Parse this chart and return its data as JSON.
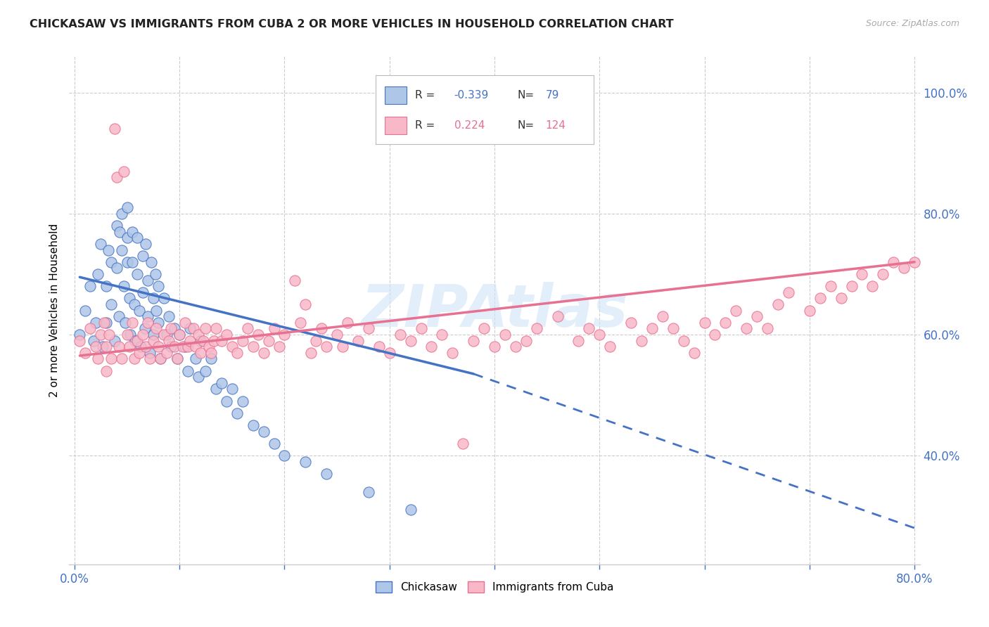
{
  "title": "CHICKASAW VS IMMIGRANTS FROM CUBA 2 OR MORE VEHICLES IN HOUSEHOLD CORRELATION CHART",
  "source": "Source: ZipAtlas.com",
  "ylabel": "2 or more Vehicles in Household",
  "legend_label1": "Chickasaw",
  "legend_label2": "Immigrants from Cuba",
  "R1": "-0.339",
  "N1": "79",
  "R2": "0.224",
  "N2": "124",
  "color1": "#aec6e8",
  "color2": "#f9b8c8",
  "trendline1_color": "#4472c4",
  "trendline2_color": "#e87090",
  "xlim": [
    -0.005,
    0.805
  ],
  "ylim": [
    0.22,
    1.06
  ],
  "x_ticks": [
    0.0,
    0.1,
    0.2,
    0.3,
    0.4,
    0.5,
    0.6,
    0.7,
    0.8
  ],
  "y_ticks_right": [
    0.4,
    0.6,
    0.8,
    1.0
  ],
  "chickasaw_x": [
    0.005,
    0.01,
    0.015,
    0.018,
    0.02,
    0.022,
    0.025,
    0.027,
    0.03,
    0.03,
    0.032,
    0.035,
    0.035,
    0.038,
    0.04,
    0.04,
    0.042,
    0.043,
    0.045,
    0.045,
    0.047,
    0.048,
    0.05,
    0.05,
    0.05,
    0.052,
    0.053,
    0.055,
    0.055,
    0.057,
    0.058,
    0.06,
    0.06,
    0.062,
    0.063,
    0.065,
    0.065,
    0.067,
    0.068,
    0.07,
    0.07,
    0.072,
    0.073,
    0.075,
    0.075,
    0.077,
    0.078,
    0.08,
    0.08,
    0.082,
    0.085,
    0.088,
    0.09,
    0.092,
    0.095,
    0.098,
    0.1,
    0.105,
    0.108,
    0.11,
    0.115,
    0.118,
    0.12,
    0.125,
    0.13,
    0.135,
    0.14,
    0.145,
    0.15,
    0.155,
    0.16,
    0.17,
    0.18,
    0.19,
    0.2,
    0.22,
    0.24,
    0.28,
    0.32
  ],
  "chickasaw_y": [
    0.6,
    0.64,
    0.68,
    0.59,
    0.62,
    0.7,
    0.75,
    0.58,
    0.68,
    0.62,
    0.74,
    0.72,
    0.65,
    0.59,
    0.78,
    0.71,
    0.63,
    0.77,
    0.8,
    0.74,
    0.68,
    0.62,
    0.76,
    0.81,
    0.72,
    0.66,
    0.6,
    0.77,
    0.72,
    0.65,
    0.59,
    0.76,
    0.7,
    0.64,
    0.58,
    0.73,
    0.67,
    0.61,
    0.75,
    0.69,
    0.63,
    0.57,
    0.72,
    0.66,
    0.6,
    0.7,
    0.64,
    0.68,
    0.62,
    0.56,
    0.66,
    0.6,
    0.63,
    0.58,
    0.61,
    0.56,
    0.6,
    0.58,
    0.54,
    0.61,
    0.56,
    0.53,
    0.59,
    0.54,
    0.56,
    0.51,
    0.52,
    0.49,
    0.51,
    0.47,
    0.49,
    0.45,
    0.44,
    0.42,
    0.4,
    0.39,
    0.37,
    0.34,
    0.31
  ],
  "cuba_x": [
    0.005,
    0.01,
    0.015,
    0.02,
    0.022,
    0.025,
    0.028,
    0.03,
    0.03,
    0.033,
    0.035,
    0.038,
    0.04,
    0.042,
    0.045,
    0.047,
    0.05,
    0.052,
    0.055,
    0.057,
    0.06,
    0.062,
    0.065,
    0.068,
    0.07,
    0.072,
    0.075,
    0.078,
    0.08,
    0.082,
    0.085,
    0.088,
    0.09,
    0.092,
    0.095,
    0.098,
    0.1,
    0.103,
    0.105,
    0.108,
    0.11,
    0.113,
    0.115,
    0.118,
    0.12,
    0.123,
    0.125,
    0.128,
    0.13,
    0.133,
    0.135,
    0.14,
    0.145,
    0.15,
    0.155,
    0.16,
    0.165,
    0.17,
    0.175,
    0.18,
    0.185,
    0.19,
    0.195,
    0.2,
    0.21,
    0.215,
    0.22,
    0.225,
    0.23,
    0.235,
    0.24,
    0.25,
    0.255,
    0.26,
    0.27,
    0.28,
    0.29,
    0.3,
    0.31,
    0.32,
    0.33,
    0.34,
    0.35,
    0.36,
    0.37,
    0.38,
    0.39,
    0.4,
    0.41,
    0.42,
    0.43,
    0.44,
    0.46,
    0.48,
    0.49,
    0.5,
    0.51,
    0.53,
    0.54,
    0.55,
    0.56,
    0.57,
    0.58,
    0.59,
    0.6,
    0.61,
    0.62,
    0.63,
    0.64,
    0.65,
    0.66,
    0.67,
    0.68,
    0.7,
    0.71,
    0.72,
    0.73,
    0.74,
    0.75,
    0.76,
    0.77,
    0.78,
    0.79,
    0.8
  ],
  "cuba_y": [
    0.59,
    0.57,
    0.61,
    0.58,
    0.56,
    0.6,
    0.62,
    0.58,
    0.54,
    0.6,
    0.56,
    0.94,
    0.86,
    0.58,
    0.56,
    0.87,
    0.6,
    0.58,
    0.62,
    0.56,
    0.59,
    0.57,
    0.6,
    0.58,
    0.62,
    0.56,
    0.59,
    0.61,
    0.58,
    0.56,
    0.6,
    0.57,
    0.59,
    0.61,
    0.58,
    0.56,
    0.6,
    0.58,
    0.62,
    0.58,
    0.59,
    0.61,
    0.58,
    0.6,
    0.57,
    0.59,
    0.61,
    0.58,
    0.57,
    0.59,
    0.61,
    0.59,
    0.6,
    0.58,
    0.57,
    0.59,
    0.61,
    0.58,
    0.6,
    0.57,
    0.59,
    0.61,
    0.58,
    0.6,
    0.69,
    0.62,
    0.65,
    0.57,
    0.59,
    0.61,
    0.58,
    0.6,
    0.58,
    0.62,
    0.59,
    0.61,
    0.58,
    0.57,
    0.6,
    0.59,
    0.61,
    0.58,
    0.6,
    0.57,
    0.42,
    0.59,
    0.61,
    0.58,
    0.6,
    0.58,
    0.59,
    0.61,
    0.63,
    0.59,
    0.61,
    0.6,
    0.58,
    0.62,
    0.59,
    0.61,
    0.63,
    0.61,
    0.59,
    0.57,
    0.62,
    0.6,
    0.62,
    0.64,
    0.61,
    0.63,
    0.61,
    0.65,
    0.67,
    0.64,
    0.66,
    0.68,
    0.66,
    0.68,
    0.7,
    0.68,
    0.7,
    0.72,
    0.71,
    0.72
  ],
  "trendline1_x_start": 0.005,
  "trendline1_x_solid_end": 0.38,
  "trendline1_x_dash_end": 0.8,
  "trendline1_y_start": 0.695,
  "trendline1_y_solid_end": 0.535,
  "trendline1_y_dash_end": 0.28,
  "trendline2_x_start": 0.005,
  "trendline2_x_end": 0.8,
  "trendline2_y_start": 0.565,
  "trendline2_y_end": 0.72
}
